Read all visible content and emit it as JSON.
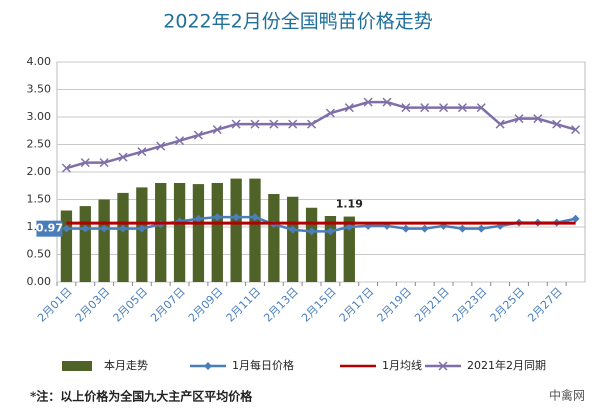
{
  "chart_data": {
    "type": "combo",
    "title": "2022年2月份全国鸭苗价格走势",
    "note": "*注：以上价格为全国九大主产区平均价格",
    "watermark": "中禽网",
    "categories": [
      "2月01日",
      null,
      "2月03日",
      null,
      "2月05日",
      null,
      "2月07日",
      null,
      "2月09日",
      null,
      "2月11日",
      null,
      "2月13日",
      null,
      "2月15日",
      null,
      "2月17日",
      null,
      "2月19日",
      null,
      "2月21日",
      null,
      "2月23日",
      null,
      "2月25日",
      null,
      "2月27日",
      null
    ],
    "ylim": [
      0,
      4
    ],
    "yticks": [
      {
        "value": 0,
        "label": "0.00"
      },
      {
        "value": 0.5,
        "label": "0.50"
      },
      {
        "value": 1,
        "label": "1.00"
      },
      {
        "value": 1.5,
        "label": "1.50"
      },
      {
        "value": 2,
        "label": "2.00"
      },
      {
        "value": 2.5,
        "label": "2.50"
      },
      {
        "value": 3,
        "label": "3.00"
      },
      {
        "value": 3.5,
        "label": "3.50"
      },
      {
        "value": 4,
        "label": "4.00"
      }
    ],
    "grid": true,
    "legend": "bottom",
    "series": [
      {
        "name": "本月走势",
        "type": "bar",
        "color": "#4f6228",
        "values": [
          1.3,
          1.38,
          1.5,
          1.62,
          1.72,
          1.8,
          1.8,
          1.78,
          1.8,
          1.88,
          1.88,
          1.6,
          1.55,
          1.35,
          1.2,
          1.19,
          null,
          null,
          null,
          null,
          null,
          null,
          null,
          null,
          null,
          null,
          null,
          null
        ],
        "value_labels": [
          null,
          null,
          null,
          null,
          null,
          null,
          null,
          null,
          null,
          null,
          null,
          null,
          null,
          null,
          null,
          "1.19",
          null,
          null,
          null,
          null,
          null,
          null,
          null,
          null,
          null,
          null,
          null,
          null
        ]
      },
      {
        "name": "1月每日价格",
        "type": "line",
        "marker": "diamond",
        "color": "#4a7ebb",
        "values": [
          0.97,
          0.97,
          0.97,
          0.97,
          0.97,
          1.05,
          1.1,
          1.15,
          1.18,
          1.18,
          1.18,
          1.05,
          0.95,
          0.92,
          0.92,
          1.0,
          1.02,
          1.02,
          0.97,
          0.97,
          1.02,
          0.97,
          0.97,
          1.02,
          1.08,
          1.08,
          1.08,
          1.15
        ],
        "value_labels": [
          "0.97",
          null,
          null,
          null,
          null,
          null,
          null,
          null,
          null,
          null,
          null,
          null,
          null,
          null,
          null,
          null,
          null,
          null,
          null,
          null,
          null,
          null,
          null,
          null,
          null,
          null,
          null,
          null
        ]
      },
      {
        "name": "1月均线",
        "type": "line",
        "marker": "none",
        "color": "#b00000",
        "values": [
          1.07,
          1.07,
          1.07,
          1.07,
          1.07,
          1.07,
          1.07,
          1.07,
          1.07,
          1.07,
          1.07,
          1.07,
          1.07,
          1.07,
          1.07,
          1.07,
          1.07,
          1.07,
          1.07,
          1.07,
          1.07,
          1.07,
          1.07,
          1.07,
          1.07,
          1.07,
          1.07,
          1.07
        ]
      },
      {
        "name": "2021年2月同期",
        "type": "line",
        "marker": "x",
        "color": "#7f6fa8",
        "values": [
          2.07,
          2.17,
          2.17,
          2.27,
          2.37,
          2.47,
          2.57,
          2.67,
          2.77,
          2.87,
          2.87,
          2.87,
          2.87,
          2.87,
          3.07,
          3.17,
          3.27,
          3.27,
          3.17,
          3.17,
          3.17,
          3.17,
          3.17,
          2.87,
          2.97,
          2.97,
          2.87,
          2.77
        ]
      }
    ]
  }
}
